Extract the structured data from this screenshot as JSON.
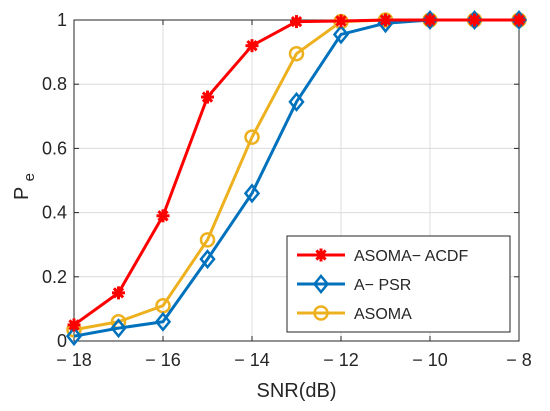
{
  "chart_data": {
    "type": "line",
    "xlabel": "SNR(dB)",
    "ylabel": "P",
    "ylabel_sub": "e",
    "xlim": [
      -18,
      -8
    ],
    "ylim": [
      0,
      1
    ],
    "xticks": [
      -18,
      -16,
      -14,
      -12,
      -10,
      -8
    ],
    "xtick_labels": [
      "− 18",
      "− 16",
      "− 14",
      "− 12",
      "− 10",
      "− 8"
    ],
    "yticks": [
      0,
      0.2,
      0.4,
      0.6,
      0.8,
      1
    ],
    "ytick_labels": [
      "0",
      "0.2",
      "0.4",
      "0.6",
      "0.8",
      "1"
    ],
    "grid": true,
    "legend_position": "bottom-right",
    "x": [
      -18,
      -17,
      -16,
      -15,
      -14,
      -13,
      -12,
      -11,
      -10,
      -9,
      -8
    ],
    "series": [
      {
        "name": "ASOMA− ACDF",
        "color": "#ff0000",
        "marker": "star",
        "values": [
          0.05,
          0.15,
          0.39,
          0.76,
          0.92,
          0.995,
          0.997,
          1.0,
          1.0,
          1.0,
          1.0
        ]
      },
      {
        "name": "A− PSR",
        "color": "#0072bd",
        "marker": "diamond",
        "values": [
          0.015,
          0.04,
          0.06,
          0.255,
          0.46,
          0.745,
          0.955,
          0.99,
          1.0,
          1.0,
          1.0
        ]
      },
      {
        "name": "ASOMA",
        "color": "#edb120",
        "marker": "circle",
        "values": [
          0.035,
          0.06,
          0.11,
          0.315,
          0.635,
          0.895,
          0.995,
          1.0,
          1.0,
          1.0,
          1.0
        ]
      }
    ]
  }
}
